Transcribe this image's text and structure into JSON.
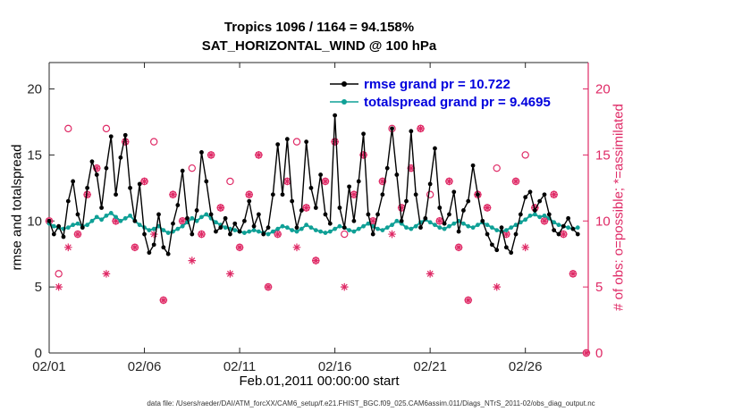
{
  "caption": "data file: /Users/raeder/DAI/ATM_forcXX/CAM6_setup/f.e21.FHIST_BGC.f09_025.CAM6assim.011/Diags_NTrS_2011-02/obs_diag_output.nc",
  "chart_data": {
    "type": "line",
    "title": "Tropics 1096 / 1164 = 94.158%",
    "subtitle": "SAT_HORIZONTAL_WIND @ 100 hPa",
    "xlabel": "Feb.01,2011 00:00:00 start",
    "ylabel_left": "rmse and totalspread",
    "ylabel_right": "# of obs: o=possible; *=assimilated",
    "xlim": [
      1,
      29.3
    ],
    "ylim": [
      0,
      22
    ],
    "yticks": [
      0,
      5,
      10,
      15,
      20
    ],
    "xticks": [
      1,
      6,
      11,
      16,
      21,
      26
    ],
    "xtick_labels": [
      "02/01",
      "02/06",
      "02/11",
      "02/16",
      "02/21",
      "02/26"
    ],
    "grid": false,
    "legend_position": "top-right-inside",
    "colors": {
      "axis": "#262626",
      "obs": "#df2a66",
      "legend_text": "#0000dd"
    },
    "x_start": 1,
    "x_step": 0.25,
    "series": [
      {
        "name": "rmse",
        "label": "rmse grand pr = 10.722",
        "grand_value": 10.722,
        "color": "#000000",
        "values": [
          10.0,
          9.0,
          9.6,
          8.8,
          11.5,
          13.0,
          10.5,
          9.5,
          12.5,
          14.5,
          13.5,
          11.0,
          14.0,
          16.4,
          12.0,
          14.8,
          16.5,
          12.5,
          10.0,
          12.8,
          9.0,
          7.6,
          8.2,
          10.5,
          8.0,
          7.5,
          9.8,
          11.2,
          13.8,
          10.2,
          9.0,
          10.8,
          15.2,
          13.0,
          10.5,
          9.2,
          9.5,
          10.2,
          9.0,
          9.8,
          9.2,
          10.0,
          11.5,
          9.6,
          10.5,
          9.0,
          9.5,
          12.0,
          15.8,
          12.0,
          16.2,
          11.5,
          9.5,
          10.8,
          16.0,
          12.5,
          11.0,
          13.5,
          10.5,
          9.8,
          18.0,
          11.0,
          9.5,
          12.6,
          10.0,
          13.0,
          16.6,
          10.5,
          9.0,
          10.5,
          12.0,
          14.0,
          17.0,
          13.5,
          10.0,
          11.5,
          16.8,
          12.0,
          9.5,
          10.2,
          12.8,
          15.5,
          11.0,
          9.8,
          10.5,
          12.2,
          9.2,
          10.8,
          11.5,
          14.2,
          12.0,
          10.0,
          9.0,
          8.2,
          7.8,
          9.5,
          8.0,
          7.6,
          9.0,
          10.5,
          11.8,
          12.2,
          10.8,
          11.5,
          12.0,
          10.5,
          9.3,
          9.0,
          9.6,
          10.2,
          9.4,
          9.0
        ]
      },
      {
        "name": "totalspread",
        "label": "totalspread grand pr = 9.4695",
        "grand_value": 9.4695,
        "color": "#0fa096",
        "values": [
          9.8,
          9.6,
          9.5,
          9.4,
          9.5,
          9.7,
          9.8,
          9.6,
          9.7,
          10.0,
          10.3,
          10.1,
          10.4,
          10.6,
          10.3,
          10.0,
          10.2,
          10.4,
          10.0,
          9.7,
          9.5,
          9.3,
          9.4,
          9.6,
          9.3,
          9.1,
          9.2,
          9.4,
          9.6,
          9.9,
          10.2,
          10.0,
          10.3,
          10.5,
          10.2,
          9.9,
          9.7,
          9.5,
          9.4,
          9.3,
          9.2,
          9.1,
          9.2,
          9.3,
          9.2,
          9.1,
          9.0,
          9.2,
          9.4,
          9.6,
          9.5,
          9.3,
          9.2,
          9.4,
          9.7,
          9.5,
          9.3,
          9.2,
          9.1,
          9.2,
          9.4,
          9.6,
          9.5,
          9.3,
          9.2,
          9.4,
          9.6,
          9.8,
          9.6,
          9.4,
          9.3,
          9.5,
          9.7,
          10.0,
          9.8,
          9.5,
          9.4,
          9.6,
          9.9,
          10.1,
          9.9,
          9.7,
          9.5,
          9.4,
          9.6,
          9.8,
          10.0,
          9.8,
          9.6,
          9.5,
          9.7,
          9.9,
          9.7,
          9.5,
          9.3,
          9.2,
          9.3,
          9.5,
          9.7,
          9.9,
          10.1,
          10.4,
          10.5,
          10.3,
          10.4,
          10.2,
          9.9,
          9.7,
          9.6,
          9.5,
          9.4,
          9.5
        ]
      }
    ],
    "obs": {
      "x": [
        1,
        1.5,
        2,
        2.5,
        3,
        3.5,
        4,
        4.5,
        5,
        5.5,
        6,
        6.5,
        7,
        7.5,
        8,
        8.5,
        9,
        9.5,
        10,
        10.5,
        11,
        11.5,
        12,
        12.5,
        13,
        13.5,
        14,
        14.5,
        15,
        15.5,
        16,
        16.5,
        17,
        17.5,
        18,
        18.5,
        19,
        19.5,
        20,
        20.5,
        21,
        21.5,
        22,
        22.5,
        23,
        23.5,
        24,
        24.5,
        25,
        25.5,
        26,
        26.5,
        27,
        27.5,
        28,
        28.5,
        29.2
      ],
      "possible": [
        10,
        6,
        17,
        9,
        12,
        14,
        17,
        10,
        16,
        8,
        13,
        16,
        4,
        12,
        10,
        14,
        9,
        15,
        11,
        13,
        8,
        12,
        15,
        5,
        9,
        13,
        16,
        11,
        7,
        13,
        16,
        9,
        12,
        15,
        10,
        13,
        17,
        11,
        14,
        17,
        12,
        10,
        13,
        8,
        4,
        12,
        11,
        14,
        9,
        13,
        15,
        11,
        10,
        12,
        9,
        6,
        0
      ],
      "assimilated": [
        10,
        5,
        8,
        9,
        12,
        14,
        6,
        10,
        16,
        8,
        13,
        9,
        4,
        12,
        10,
        7,
        9,
        15,
        11,
        6,
        8,
        12,
        15,
        5,
        9,
        13,
        8,
        11,
        7,
        13,
        16,
        5,
        12,
        15,
        10,
        13,
        9,
        11,
        14,
        17,
        6,
        10,
        13,
        8,
        4,
        12,
        11,
        5,
        9,
        13,
        8,
        11,
        10,
        12,
        9,
        6,
        0
      ]
    }
  }
}
